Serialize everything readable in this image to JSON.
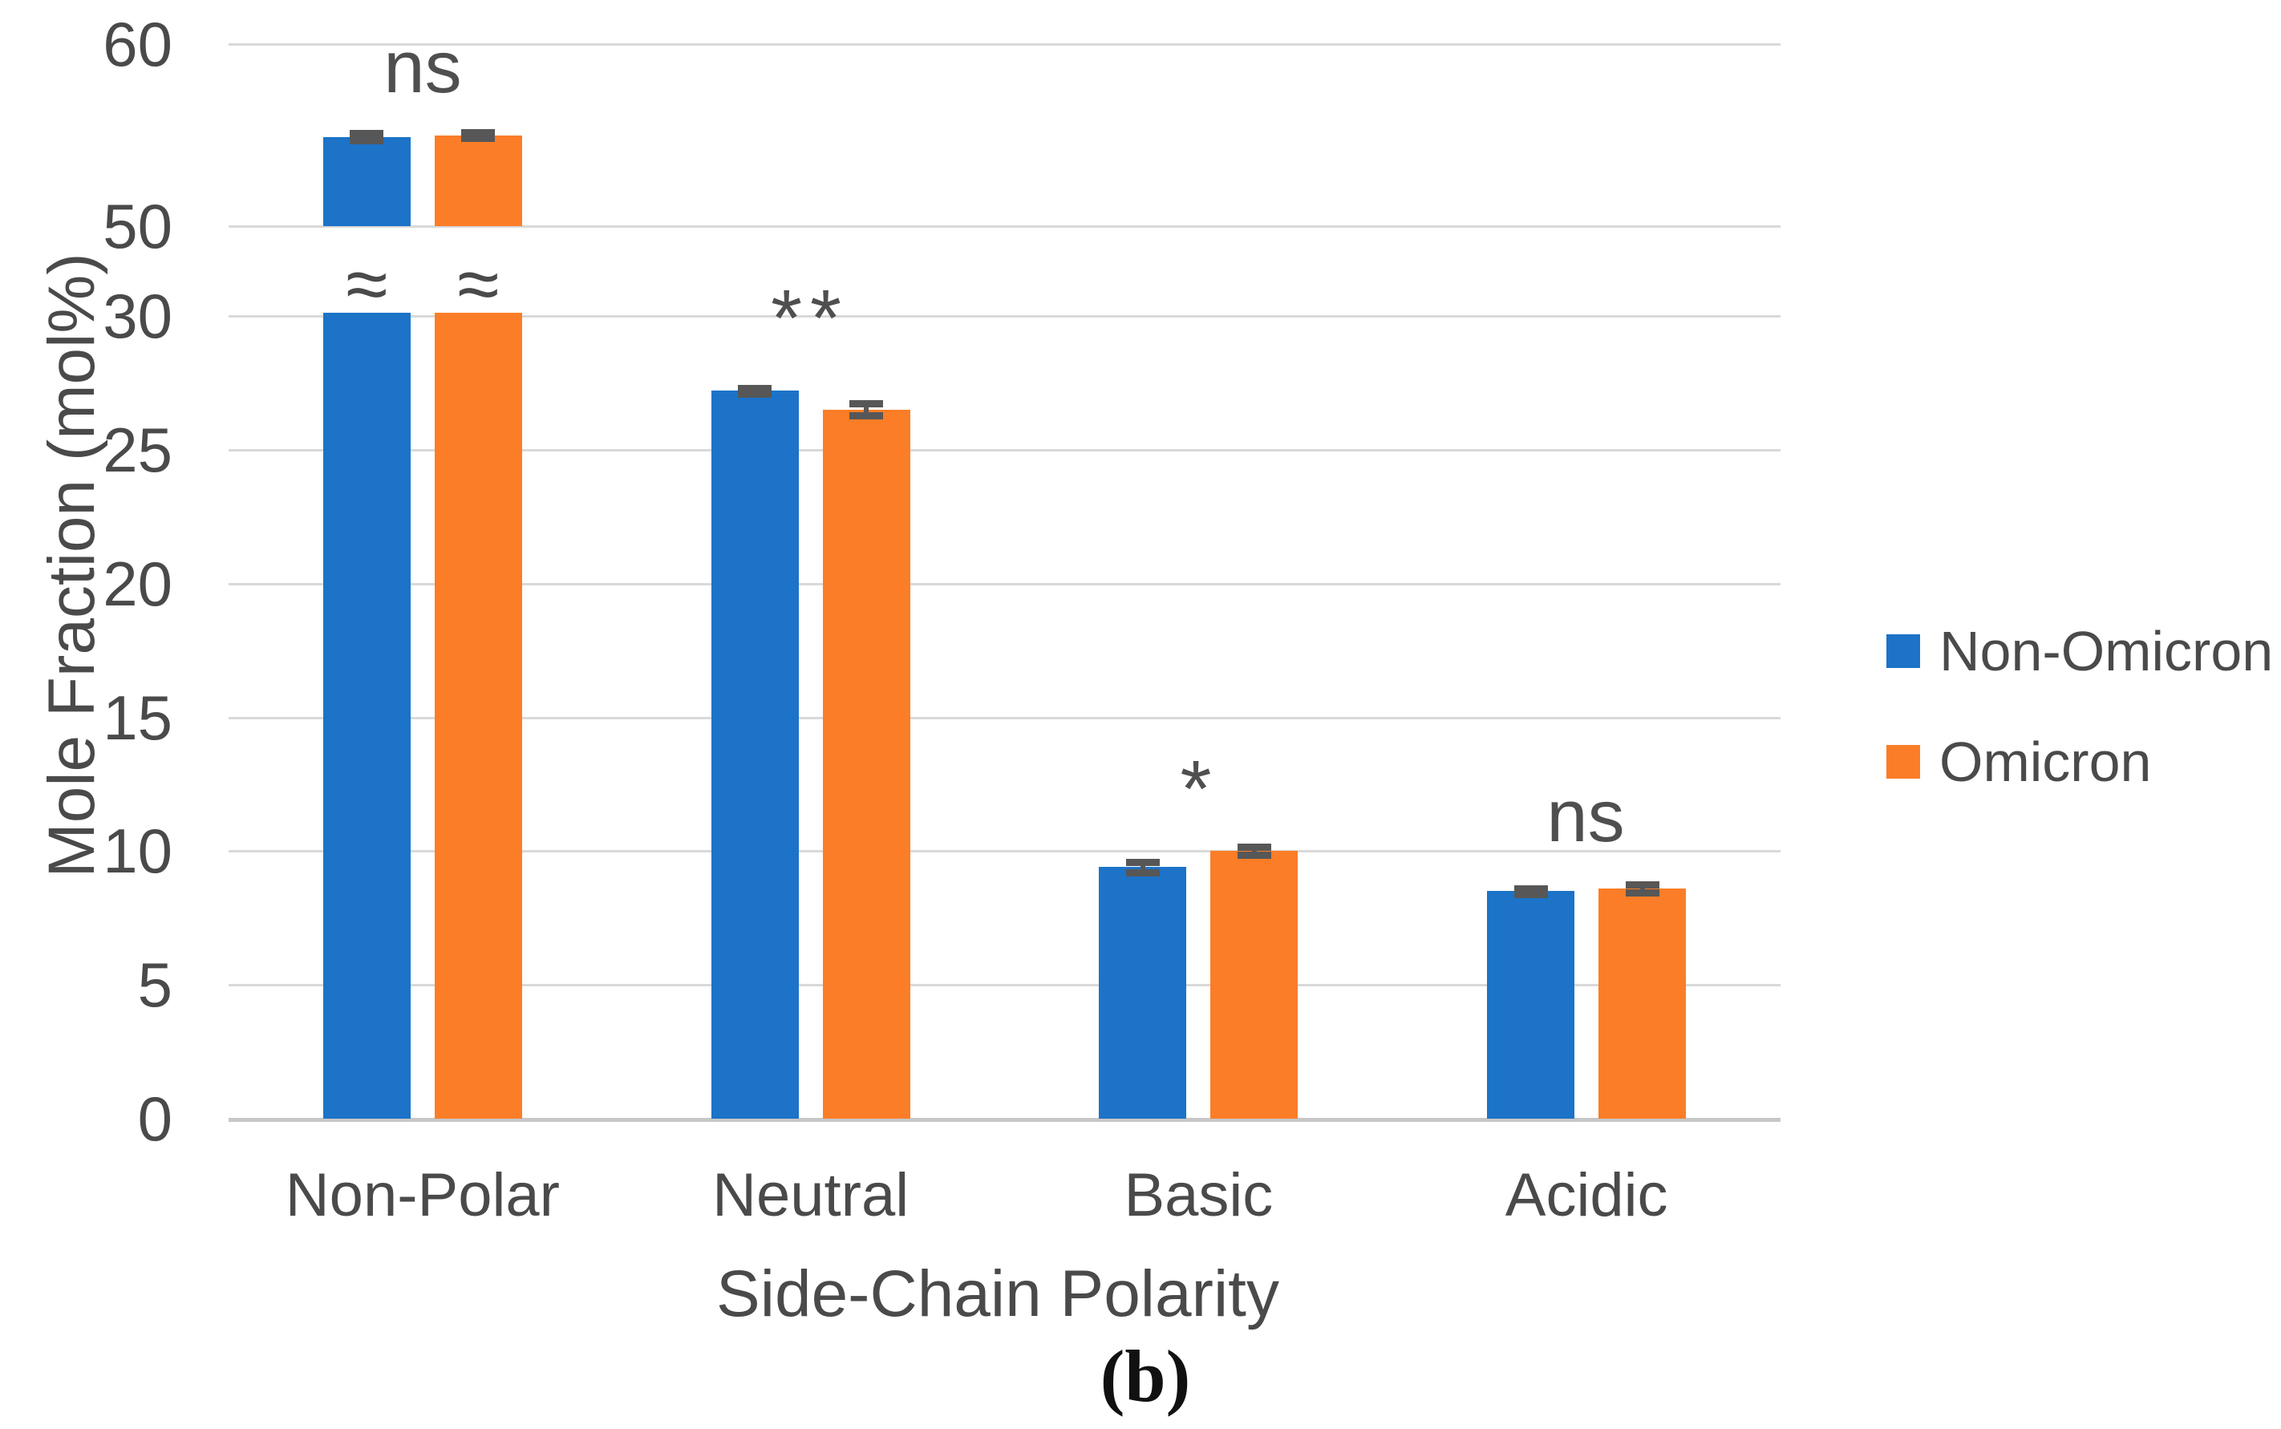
{
  "figure": {
    "caption": "(b)"
  },
  "axes": {
    "x_title": "Side-Chain Polarity",
    "y_title": "Mole Fraction (mol%)"
  },
  "legend": {
    "items": [
      {
        "label": "Non-Omicron",
        "color": "#1C73C8"
      },
      {
        "label": "Omicron",
        "color": "#FB7D27"
      }
    ]
  },
  "chart_data": {
    "type": "bar",
    "title": "",
    "xlabel": "Side-Chain Polarity",
    "ylabel": "Mole Fraction (mol%)",
    "categories": [
      "Non-Polar",
      "Neutral",
      "Basic",
      "Acidic"
    ],
    "series": [
      {
        "name": "Non-Omicron",
        "color": "#1C73C8",
        "values": [
          54.9,
          27.2,
          9.4,
          8.5
        ],
        "errors": [
          0.2,
          0.1,
          0.2,
          0.1
        ]
      },
      {
        "name": "Omicron",
        "color": "#FB7D27",
        "values": [
          55.0,
          26.5,
          10.0,
          8.6
        ],
        "errors": [
          0.15,
          0.22,
          0.15,
          0.15
        ]
      }
    ],
    "significance_by_category": [
      "ns",
      "**",
      "*",
      "ns"
    ],
    "y_ticks": [
      60,
      50,
      30,
      25,
      20,
      15,
      10,
      5,
      0
    ],
    "axis_break": {
      "between": [
        30,
        50
      ],
      "symbol": "≈",
      "on_category": "Non-Polar"
    },
    "ylim_lower": [
      0,
      30
    ],
    "ylim_upper": [
      50,
      60
    ],
    "grid": true,
    "legend_position": "right",
    "gridline_color": "#D9D9D9",
    "error_bar_color": "#575757"
  }
}
